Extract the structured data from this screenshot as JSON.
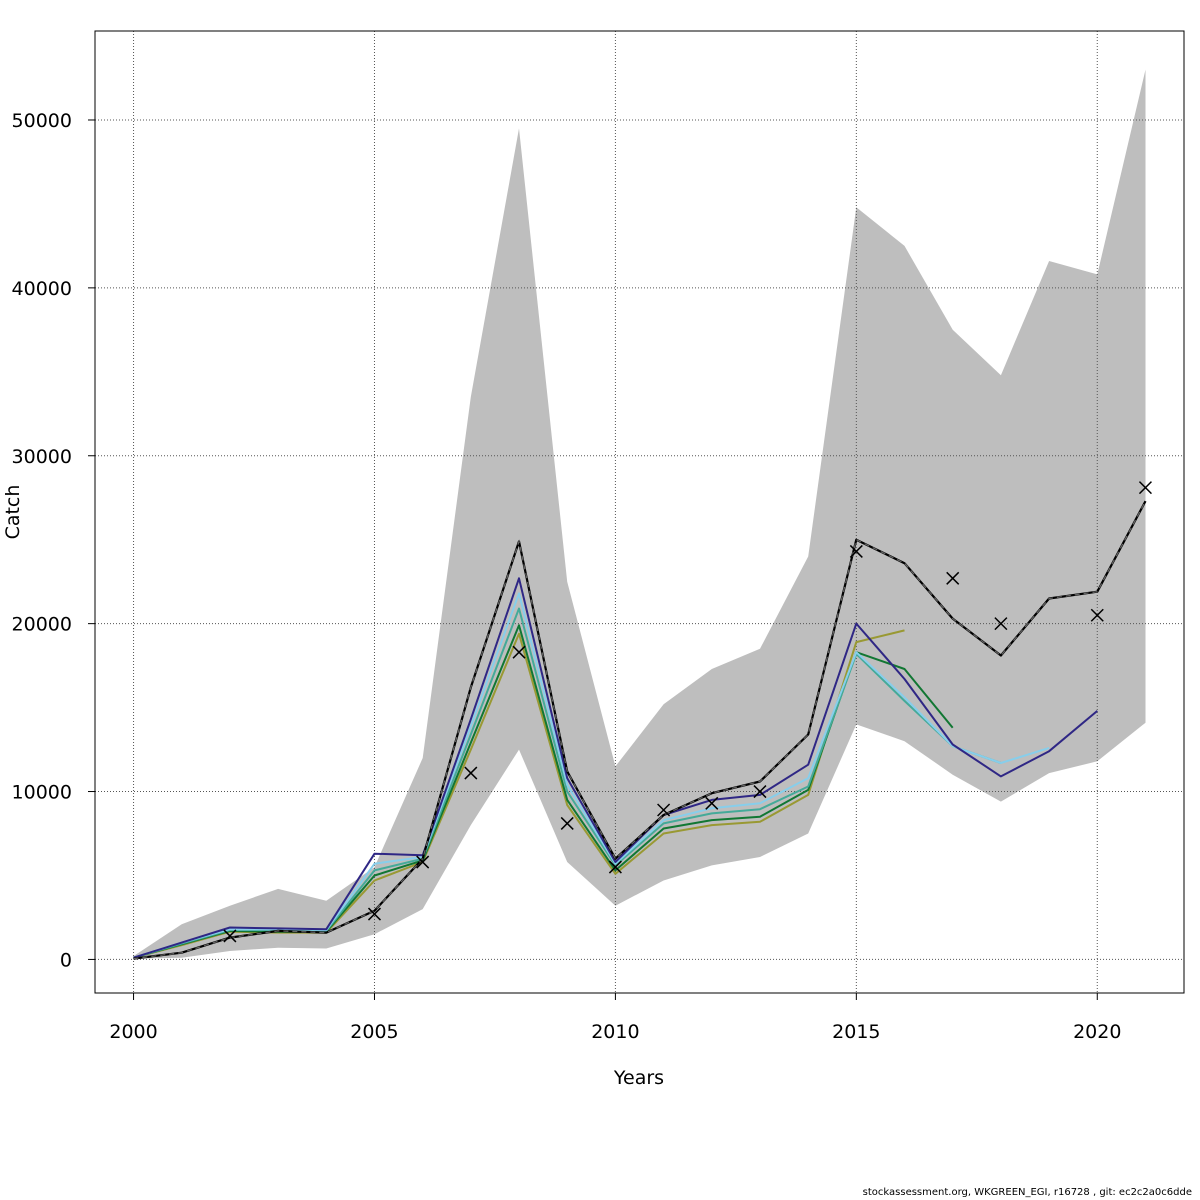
{
  "footer": "stockassessment.org, WKGREEN_EGI, r16728 , git: ec2c2a0c6dde",
  "colors": {
    "band": "#bebebe",
    "final": "#000000",
    "final_dash": "#666666",
    "grid": "#555555"
  },
  "chart_data": {
    "type": "line",
    "title": "",
    "xlabel": "Years",
    "ylabel": "Catch",
    "xlim": [
      1999.2,
      2021.8
    ],
    "ylim": [
      -2000,
      55300
    ],
    "x_ticks": [
      2000,
      2005,
      2010,
      2015,
      2020
    ],
    "y_ticks": [
      0,
      10000,
      20000,
      30000,
      40000,
      50000
    ],
    "grid": true,
    "confidence_band": {
      "x": [
        2000,
        2001,
        2002,
        2003,
        2004,
        2005,
        2006,
        2007,
        2008,
        2009,
        2010,
        2011,
        2012,
        2013,
        2014,
        2015,
        2016,
        2017,
        2018,
        2019,
        2020,
        2021
      ],
      "lower": [
        50,
        100,
        500,
        700,
        650,
        1500,
        3000,
        8000,
        12500,
        5800,
        3200,
        4700,
        5600,
        6100,
        7500,
        14000,
        13000,
        11000,
        9400,
        11100,
        11800,
        14100
      ],
      "upper": [
        200,
        2100,
        3200,
        4200,
        3500,
        5500,
        12000,
        33500,
        49500,
        22500,
        11500,
        15200,
        17300,
        18500,
        24000,
        44800,
        42500,
        37500,
        34800,
        41600,
        40800,
        53000
      ]
    },
    "final_estimate": {
      "x": [
        2000,
        2001,
        2002,
        2003,
        2004,
        2005,
        2006,
        2007,
        2008,
        2009,
        2010,
        2011,
        2012,
        2013,
        2014,
        2015,
        2016,
        2017,
        2018,
        2019,
        2020,
        2021
      ],
      "y": [
        50,
        400,
        1300,
        1700,
        1600,
        2900,
        6000,
        16200,
        24900,
        11200,
        6000,
        8600,
        9900,
        10600,
        13400,
        25000,
        23600,
        20300,
        18100,
        21500,
        21900,
        27300
      ]
    },
    "series": [
      {
        "color": "#2f2785",
        "x": [
          2000,
          2001,
          2002,
          2003,
          2004,
          2005,
          2006,
          2007,
          2008,
          2009,
          2010,
          2011,
          2012,
          2013,
          2014,
          2015,
          2016,
          2017,
          2018,
          2019,
          2020
        ],
        "y": [
          100,
          1000,
          1900,
          1850,
          1800,
          6300,
          6200,
          14300,
          22700,
          10800,
          5800,
          8600,
          9500,
          9800,
          11600,
          20000,
          16700,
          12800,
          10900,
          12400,
          14800
        ]
      },
      {
        "color": "#87ceeb",
        "x": [
          2000,
          2001,
          2002,
          2003,
          2004,
          2005,
          2006,
          2007,
          2008,
          2009,
          2010,
          2011,
          2012,
          2013,
          2014,
          2015,
          2016,
          2017,
          2018,
          2019
        ],
        "y": [
          100,
          1000,
          1800,
          1800,
          1750,
          5700,
          6100,
          13900,
          21800,
          10400,
          5700,
          8300,
          9000,
          9300,
          10800,
          18300,
          15600,
          12700,
          11700,
          12600
        ]
      },
      {
        "color": "#44aa99",
        "x": [
          2000,
          2001,
          2002,
          2003,
          2004,
          2005,
          2006,
          2007,
          2008,
          2009,
          2010,
          2011,
          2012,
          2013,
          2014,
          2015,
          2016,
          2017,
          2018
        ],
        "y": [
          100,
          950,
          1750,
          1750,
          1700,
          5300,
          6000,
          13400,
          20900,
          10000,
          5600,
          8100,
          8700,
          8950,
          10300,
          18200,
          15400,
          12700,
          11700
        ]
      },
      {
        "color": "#117733",
        "x": [
          2000,
          2001,
          2002,
          2003,
          2004,
          2005,
          2006,
          2007,
          2008,
          2009,
          2010,
          2011,
          2012,
          2013,
          2014,
          2015,
          2016,
          2017
        ],
        "y": [
          100,
          900,
          1700,
          1650,
          1650,
          5000,
          5900,
          12900,
          19900,
          9500,
          5300,
          7800,
          8300,
          8500,
          10100,
          18300,
          17300,
          13800
        ]
      },
      {
        "color": "#999933",
        "x": [
          2000,
          2001,
          2002,
          2003,
          2004,
          2005,
          2006,
          2007,
          2008,
          2009,
          2010,
          2011,
          2012,
          2013,
          2014,
          2015,
          2016
        ],
        "y": [
          100,
          850,
          1650,
          1600,
          1600,
          4700,
          5800,
          12500,
          19400,
          9200,
          5100,
          7500,
          8000,
          8200,
          9800,
          18900,
          19600
        ]
      }
    ],
    "observed": {
      "x": [
        2002,
        2005,
        2006,
        2007,
        2008,
        2009,
        2010,
        2011,
        2012,
        2013,
        2015,
        2017,
        2018,
        2020,
        2021
      ],
      "y": [
        1400,
        2700,
        5800,
        11100,
        18300,
        8100,
        5500,
        8900,
        9300,
        10000,
        24300,
        22700,
        20000,
        20500,
        28100
      ]
    }
  }
}
